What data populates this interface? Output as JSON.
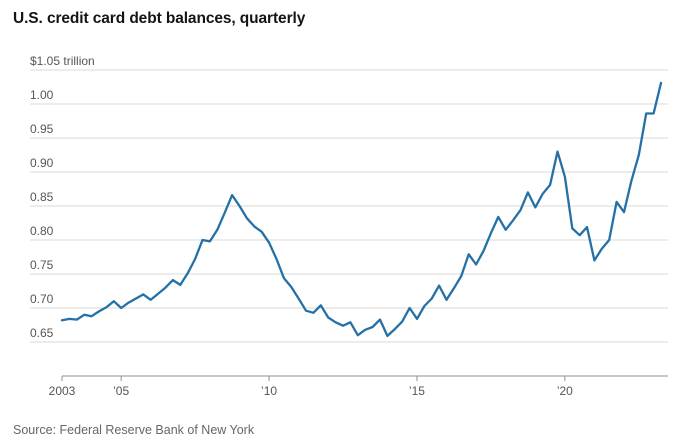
{
  "title": "U.S. credit card debt balances, quarterly",
  "source": "Source: Federal Reserve Bank of New York",
  "colors": {
    "line": "#2570A6",
    "grid": "#DADADA",
    "axis": "#8F8F8F",
    "label": "#555555",
    "title": "#141414"
  },
  "chart_data": {
    "type": "line",
    "title": "U.S. credit card debt balances, quarterly",
    "unit": "trillion USD",
    "frequency": "quarterly",
    "grid": true,
    "legend": "none",
    "x_start": 2003,
    "x_step_years": 0.25,
    "ylim": [
      0.6,
      1.05
    ],
    "y_top_label": "$1.05 trillion",
    "y_ticks": [
      {
        "value": 1.05,
        "label": "$1.05 trillion"
      },
      {
        "value": 1.0,
        "label": "1.00"
      },
      {
        "value": 0.95,
        "label": "0.95"
      },
      {
        "value": 0.9,
        "label": "0.90"
      },
      {
        "value": 0.85,
        "label": "0.85"
      },
      {
        "value": 0.8,
        "label": "0.80"
      },
      {
        "value": 0.75,
        "label": "0.75"
      },
      {
        "value": 0.7,
        "label": "0.70"
      },
      {
        "value": 0.65,
        "label": "0.65"
      }
    ],
    "x_ticks": [
      {
        "value": 2003,
        "label": "2003"
      },
      {
        "value": 2005,
        "label": "’05"
      },
      {
        "value": 2010,
        "label": "’10"
      },
      {
        "value": 2015,
        "label": "’15"
      },
      {
        "value": 2020,
        "label": "’20"
      }
    ],
    "series": [
      {
        "name": "Credit card debt balance ($ trillion)",
        "values": [
          0.682,
          0.684,
          0.683,
          0.69,
          0.688,
          0.695,
          0.701,
          0.71,
          0.7,
          0.708,
          0.714,
          0.72,
          0.712,
          0.721,
          0.73,
          0.741,
          0.734,
          0.751,
          0.772,
          0.8,
          0.798,
          0.815,
          0.84,
          0.866,
          0.85,
          0.832,
          0.82,
          0.812,
          0.796,
          0.772,
          0.744,
          0.731,
          0.714,
          0.696,
          0.693,
          0.704,
          0.686,
          0.679,
          0.674,
          0.679,
          0.66,
          0.668,
          0.672,
          0.683,
          0.659,
          0.669,
          0.68,
          0.7,
          0.684,
          0.703,
          0.714,
          0.733,
          0.712,
          0.729,
          0.747,
          0.779,
          0.764,
          0.784,
          0.81,
          0.834,
          0.815,
          0.829,
          0.844,
          0.87,
          0.848,
          0.868,
          0.881,
          0.93,
          0.893,
          0.817,
          0.807,
          0.819,
          0.77,
          0.787,
          0.8,
          0.856,
          0.841,
          0.887,
          0.925,
          0.986,
          0.986,
          1.031
        ]
      }
    ]
  }
}
